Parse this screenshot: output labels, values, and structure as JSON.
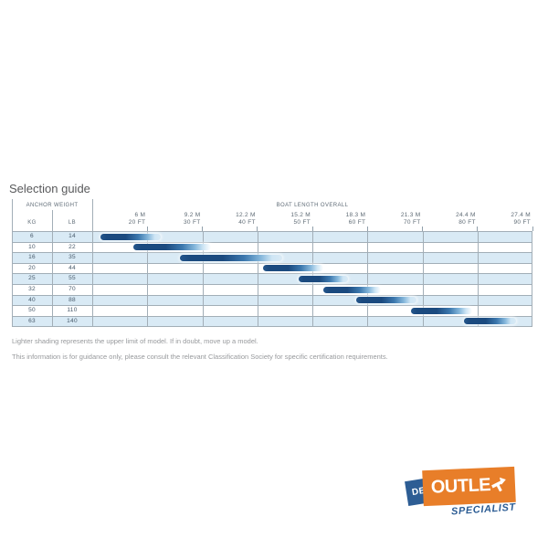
{
  "title": "Selection guide",
  "table": {
    "anchor_weight_label": "ANCHOR WEIGHT",
    "boat_length_label": "BOAT LENGTH OVERALL",
    "kg_label": "KG",
    "lb_label": "LB",
    "axis_ft_range": [
      10,
      90
    ],
    "columns": [
      {
        "m": "6 M",
        "ft": "20 FT"
      },
      {
        "m": "9.2 M",
        "ft": "30 FT"
      },
      {
        "m": "12.2 M",
        "ft": "40 FT"
      },
      {
        "m": "15.2 M",
        "ft": "50 FT"
      },
      {
        "m": "18.3 M",
        "ft": "60 FT"
      },
      {
        "m": "21.3 M",
        "ft": "70 FT"
      },
      {
        "m": "24.4 M",
        "ft": "80 FT"
      },
      {
        "m": "27.4 M",
        "ft": "90 FT"
      }
    ],
    "rows": [
      {
        "kg": "6",
        "lb": "14",
        "bar_start_ft": 11.5,
        "bar_end_ft": 22.5
      },
      {
        "kg": "10",
        "lb": "22",
        "bar_start_ft": 17.5,
        "bar_end_ft": 31.5
      },
      {
        "kg": "16",
        "lb": "35",
        "bar_start_ft": 26,
        "bar_end_ft": 44.5
      },
      {
        "kg": "20",
        "lb": "44",
        "bar_start_ft": 41,
        "bar_end_ft": 52
      },
      {
        "kg": "25",
        "lb": "55",
        "bar_start_ft": 47.5,
        "bar_end_ft": 56.5
      },
      {
        "kg": "32",
        "lb": "70",
        "bar_start_ft": 52,
        "bar_end_ft": 62.5
      },
      {
        "kg": "40",
        "lb": "88",
        "bar_start_ft": 58,
        "bar_end_ft": 69
      },
      {
        "kg": "50",
        "lb": "110",
        "bar_start_ft": 68,
        "bar_end_ft": 79
      },
      {
        "kg": "63",
        "lb": "140",
        "bar_start_ft": 77.5,
        "bar_end_ft": 87
      }
    ]
  },
  "chart_data": {
    "type": "bar",
    "orientation": "horizontal-range",
    "title": "Selection guide",
    "x_axis": {
      "label": "BOAT LENGTH OVERALL",
      "ticks_m": [
        6,
        9.2,
        12.2,
        15.2,
        18.3,
        21.3,
        24.4,
        27.4
      ],
      "ticks_ft": [
        20,
        30,
        40,
        50,
        60,
        70,
        80,
        90
      ],
      "range_ft": [
        10,
        90
      ],
      "grid": "on"
    },
    "y_axis": {
      "label": "ANCHOR WEIGHT",
      "categories_kg": [
        6,
        10,
        16,
        20,
        25,
        32,
        40,
        50,
        63
      ],
      "categories_lb": [
        14,
        22,
        35,
        44,
        55,
        70,
        88,
        110,
        140
      ]
    },
    "series": [
      {
        "anchor_kg": 6,
        "anchor_lb": 14,
        "boat_length_ft": [
          11.5,
          22.5
        ]
      },
      {
        "anchor_kg": 10,
        "anchor_lb": 22,
        "boat_length_ft": [
          17.5,
          31.5
        ]
      },
      {
        "anchor_kg": 16,
        "anchor_lb": 35,
        "boat_length_ft": [
          26,
          44.5
        ]
      },
      {
        "anchor_kg": 20,
        "anchor_lb": 44,
        "boat_length_ft": [
          41,
          52
        ]
      },
      {
        "anchor_kg": 25,
        "anchor_lb": 55,
        "boat_length_ft": [
          47.5,
          56.5
        ]
      },
      {
        "anchor_kg": 32,
        "anchor_lb": 70,
        "boat_length_ft": [
          52,
          62.5
        ]
      },
      {
        "anchor_kg": 40,
        "anchor_lb": 88,
        "boat_length_ft": [
          58,
          69
        ]
      },
      {
        "anchor_kg": 50,
        "anchor_lb": 110,
        "boat_length_ft": [
          68,
          79
        ]
      },
      {
        "anchor_kg": 63,
        "anchor_lb": 140,
        "boat_length_ft": [
          77.5,
          87
        ]
      }
    ],
    "legend": "off"
  },
  "footnotes": [
    "Lighter shading represents the upper limit of model. If in doubt, move up a model.",
    "This information is for guidance only, please consult the relevant Classification Society for specific certification requirements."
  ],
  "logo": {
    "de": "DE",
    "outlet": "OUTLET",
    "specialist": "SPECIALIST"
  },
  "colors": {
    "bar_dark": "#1b4a7f",
    "bar_light": "#cfe6f5",
    "row_alt": "#d9eaf5",
    "gridline": "#a2aeb7",
    "logo_orange": "#e87e29",
    "logo_blue": "#2d5d94"
  }
}
